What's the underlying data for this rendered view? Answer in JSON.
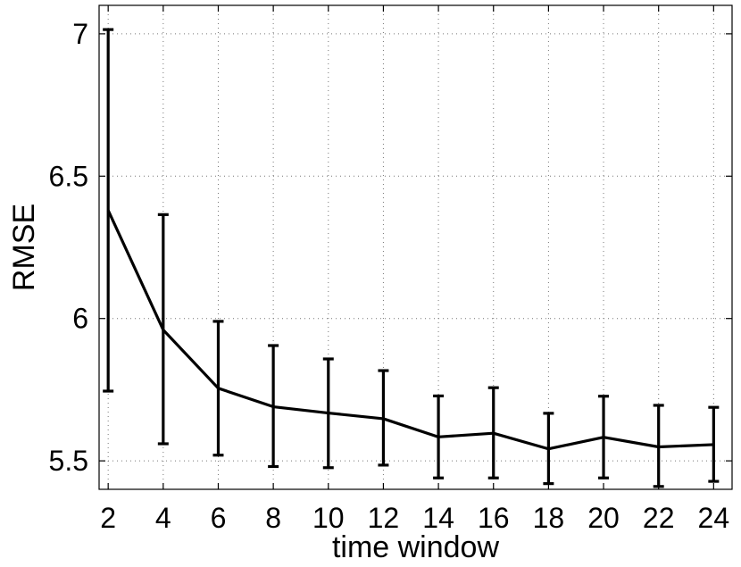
{
  "chart_data": {
    "type": "line",
    "xlabel": "time window",
    "ylabel": "RMSE",
    "xlim": [
      1.67,
      24.67
    ],
    "ylim": [
      5.4,
      7.1
    ],
    "xticks": [
      2,
      4,
      6,
      8,
      10,
      12,
      14,
      16,
      18,
      20,
      22,
      24
    ],
    "yticks": [
      5.5,
      6,
      6.5,
      7
    ],
    "ytick_labels": [
      "5.5",
      "6",
      "6.5",
      "7"
    ],
    "grid": true,
    "series": [
      {
        "x": [
          2,
          4,
          6,
          8,
          10,
          12,
          14,
          16,
          18,
          20,
          22,
          24
        ],
        "y": [
          6.38,
          5.96,
          5.755,
          5.69,
          5.668,
          5.648,
          5.584,
          5.597,
          5.542,
          5.583,
          5.549,
          5.557
        ],
        "err_low": [
          5.745,
          5.56,
          5.52,
          5.48,
          5.476,
          5.485,
          5.44,
          5.44,
          5.42,
          5.44,
          5.41,
          5.428
        ],
        "err_high": [
          7.015,
          6.365,
          5.99,
          5.905,
          5.858,
          5.817,
          5.728,
          5.757,
          5.667,
          5.727,
          5.695,
          5.688
        ]
      }
    ]
  }
}
